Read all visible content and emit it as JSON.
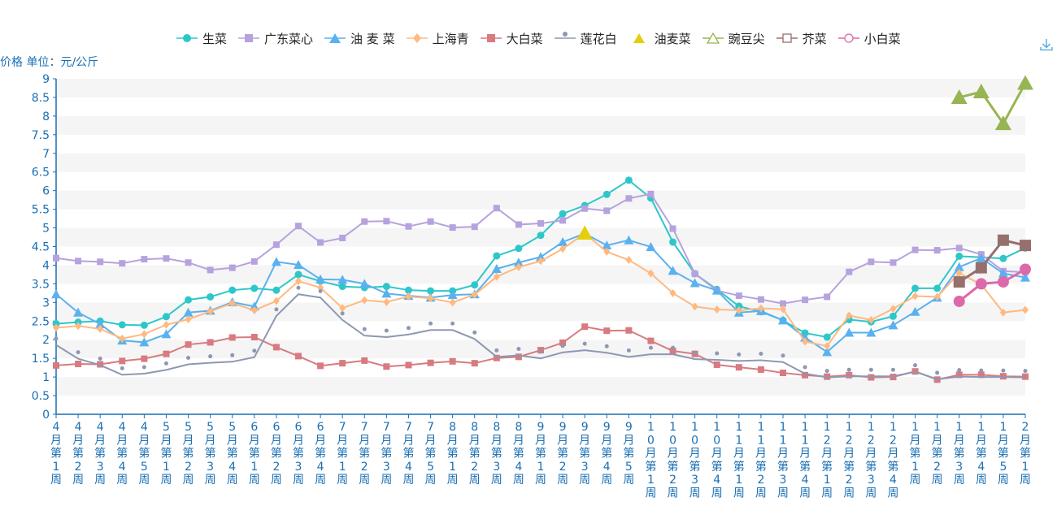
{
  "toolbar": {
    "download_icon": "download-icon"
  },
  "chart_data": {
    "type": "line",
    "ylabel": "价格 单位：元/公斤",
    "ylim": [
      0,
      9
    ],
    "yticks": [
      "0",
      "0.5",
      "1",
      "1.5",
      "2",
      "2.5",
      "3",
      "3.5",
      "4",
      "4.5",
      "5",
      "5.5",
      "6",
      "6.5",
      "7",
      "7.5",
      "8",
      "8.5",
      "9"
    ],
    "grid": true,
    "legend_position": "top",
    "categories": [
      "4月第1周",
      "4月第2周",
      "4月第3周",
      "4月第4周",
      "4月第5周",
      "5月第1周",
      "5月第2周",
      "5月第3周",
      "5月第4周",
      "6月第1周",
      "6月第2周",
      "6月第3周",
      "6月第4周",
      "7月第1周",
      "7月第2周",
      "7月第3周",
      "7月第4周",
      "7月第5周",
      "8月第1周",
      "8月第2周",
      "8月第3周",
      "8月第4周",
      "9月第1周",
      "9月第2周",
      "9月第3周",
      "9月第4周",
      "9月第5周",
      "10月第1周",
      "10月第2周",
      "10月第3周",
      "10月第4周",
      "11月第1周",
      "11月第2周",
      "11月第3周",
      "11月第4周",
      "12月第1周",
      "12月第2周",
      "12月第3周",
      "12月第4周",
      "1月第1周",
      "1月第2周",
      "1月第3周",
      "1月第4周",
      "1月第5周",
      "2月第1周"
    ],
    "series": [
      {
        "name": "生菜",
        "color": "#2ec7c9",
        "marker": "circle",
        "values": [
          2.43,
          2.47,
          2.5,
          2.4,
          2.39,
          2.62,
          3.07,
          3.15,
          3.33,
          3.38,
          3.33,
          3.75,
          3.57,
          3.43,
          3.4,
          3.43,
          3.33,
          3.31,
          3.31,
          3.47,
          4.25,
          4.45,
          4.8,
          5.38,
          5.6,
          5.9,
          6.28,
          5.8,
          4.62,
          3.77,
          3.35,
          2.9,
          2.75,
          2.52,
          2.18,
          2.07,
          2.54,
          2.48,
          2.63,
          3.38,
          3.38,
          4.24,
          4.21,
          4.18,
          4.46
        ]
      },
      {
        "name": "广东菜心",
        "color": "#b6a2de",
        "marker": "square",
        "values": [
          4.19,
          4.11,
          4.09,
          4.05,
          4.16,
          4.18,
          4.07,
          3.87,
          3.93,
          4.1,
          4.55,
          5.05,
          4.61,
          4.73,
          5.17,
          5.18,
          5.04,
          5.17,
          5.01,
          5.03,
          5.53,
          5.09,
          5.12,
          5.2,
          5.52,
          5.46,
          5.79,
          5.91,
          4.98,
          3.77,
          3.32,
          3.18,
          3.08,
          2.97,
          3.07,
          3.15,
          3.82,
          4.09,
          4.07,
          4.41,
          4.4,
          4.46,
          4.29,
          3.84,
          3.81
        ]
      },
      {
        "name": "油 麦 菜",
        "color": "#5ab1ef",
        "marker": "triangle",
        "values": [
          3.22,
          2.73,
          2.42,
          1.98,
          1.93,
          2.15,
          2.73,
          2.78,
          3.01,
          2.89,
          4.09,
          4.01,
          3.62,
          3.61,
          3.5,
          3.24,
          3.18,
          3.13,
          3.2,
          3.22,
          3.9,
          4.07,
          4.22,
          4.62,
          4.85,
          4.53,
          4.67,
          4.49,
          3.85,
          3.52,
          3.32,
          2.73,
          2.77,
          2.52,
          2.06,
          1.67,
          2.19,
          2.19,
          2.39,
          2.75,
          3.13,
          3.95,
          4.19,
          3.78,
          3.67
        ]
      },
      {
        "name": "上海青",
        "color": "#ffb980",
        "marker": "diamond",
        "values": [
          2.32,
          2.37,
          2.29,
          2.03,
          2.15,
          2.4,
          2.55,
          2.76,
          2.98,
          2.79,
          3.04,
          3.57,
          3.4,
          2.85,
          3.06,
          3.01,
          3.16,
          3.11,
          3.0,
          3.21,
          3.69,
          3.95,
          4.11,
          4.44,
          4.85,
          4.36,
          4.14,
          3.78,
          3.25,
          2.89,
          2.81,
          2.79,
          2.84,
          2.82,
          1.95,
          1.83,
          2.65,
          2.53,
          2.83,
          3.17,
          3.15,
          3.79,
          3.48,
          2.73,
          2.8
        ]
      },
      {
        "name": "大白菜",
        "color": "#d87a80",
        "marker": "square",
        "values": [
          1.31,
          1.35,
          1.34,
          1.43,
          1.49,
          1.62,
          1.87,
          1.93,
          2.06,
          2.07,
          1.8,
          1.56,
          1.3,
          1.37,
          1.44,
          1.28,
          1.32,
          1.38,
          1.42,
          1.37,
          1.51,
          1.54,
          1.72,
          1.92,
          2.35,
          2.24,
          2.25,
          1.97,
          1.7,
          1.62,
          1.33,
          1.26,
          1.2,
          1.11,
          1.05,
          1.01,
          1.05,
          0.99,
          1.0,
          1.15,
          0.93,
          1.06,
          1.06,
          1.02,
          1.01
        ]
      },
      {
        "name": "莲花白",
        "color": "#8d98b3",
        "marker": "pin",
        "values": [
          1.86,
          1.49,
          1.32,
          1.06,
          1.09,
          1.19,
          1.34,
          1.38,
          1.41,
          1.53,
          2.64,
          3.22,
          3.13,
          2.53,
          2.11,
          2.07,
          2.14,
          2.26,
          2.26,
          2.02,
          1.54,
          1.58,
          1.5,
          1.66,
          1.72,
          1.65,
          1.54,
          1.61,
          1.61,
          1.48,
          1.46,
          1.43,
          1.45,
          1.4,
          1.09,
          0.99,
          1.02,
          1.02,
          1.02,
          1.14,
          0.94,
          1.01,
          1.0,
          1.0,
          0.99
        ]
      },
      {
        "name": "油麦菜",
        "color": "#e5cf0d",
        "marker": "triangle",
        "values": [
          null,
          null,
          null,
          null,
          null,
          null,
          null,
          null,
          null,
          null,
          null,
          null,
          null,
          null,
          null,
          null,
          null,
          null,
          null,
          null,
          null,
          null,
          null,
          null,
          4.86,
          null,
          null,
          null,
          null,
          null,
          null,
          null,
          null,
          null,
          null,
          null,
          null,
          null,
          null,
          null,
          null,
          null,
          null,
          null,
          null
        ]
      },
      {
        "name": "豌豆尖",
        "color": "#97b552",
        "marker": "triangle-empty",
        "values": [
          null,
          null,
          null,
          null,
          null,
          null,
          null,
          null,
          null,
          null,
          null,
          null,
          null,
          null,
          null,
          null,
          null,
          null,
          null,
          null,
          null,
          null,
          null,
          null,
          null,
          null,
          null,
          null,
          null,
          null,
          null,
          null,
          null,
          null,
          null,
          null,
          null,
          null,
          null,
          null,
          null,
          8.5,
          8.65,
          7.8,
          8.88
        ]
      },
      {
        "name": "芥菜",
        "color": "#95706d",
        "marker": "square-empty",
        "values": [
          null,
          null,
          null,
          null,
          null,
          null,
          null,
          null,
          null,
          null,
          null,
          null,
          null,
          null,
          null,
          null,
          null,
          null,
          null,
          null,
          null,
          null,
          null,
          null,
          null,
          null,
          null,
          null,
          null,
          null,
          null,
          null,
          null,
          null,
          null,
          null,
          null,
          null,
          null,
          null,
          null,
          3.55,
          3.93,
          4.67,
          4.53
        ]
      },
      {
        "name": "小白菜",
        "color": "#dc69aa",
        "marker": "circle-empty",
        "values": [
          null,
          null,
          null,
          null,
          null,
          null,
          null,
          null,
          null,
          null,
          null,
          null,
          null,
          null,
          null,
          null,
          null,
          null,
          null,
          null,
          null,
          null,
          null,
          null,
          null,
          null,
          null,
          null,
          null,
          null,
          null,
          null,
          null,
          null,
          null,
          null,
          null,
          null,
          null,
          null,
          null,
          3.03,
          3.5,
          3.55,
          3.89
        ]
      }
    ]
  }
}
